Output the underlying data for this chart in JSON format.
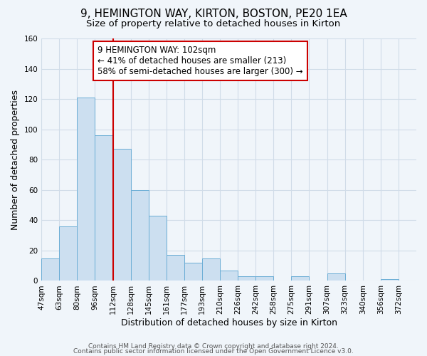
{
  "title": "9, HEMINGTON WAY, KIRTON, BOSTON, PE20 1EA",
  "subtitle": "Size of property relative to detached houses in Kirton",
  "xlabel": "Distribution of detached houses by size in Kirton",
  "ylabel": "Number of detached properties",
  "footnote1": "Contains HM Land Registry data © Crown copyright and database right 2024.",
  "footnote2": "Contains public sector information licensed under the Open Government Licence v3.0.",
  "bin_labels": [
    "47sqm",
    "63sqm",
    "80sqm",
    "96sqm",
    "112sqm",
    "128sqm",
    "145sqm",
    "161sqm",
    "177sqm",
    "193sqm",
    "210sqm",
    "226sqm",
    "242sqm",
    "258sqm",
    "275sqm",
    "291sqm",
    "307sqm",
    "323sqm",
    "340sqm",
    "356sqm",
    "372sqm"
  ],
  "bar_heights": [
    15,
    36,
    121,
    96,
    87,
    60,
    43,
    17,
    12,
    15,
    7,
    3,
    3,
    0,
    3,
    0,
    5,
    0,
    0,
    1,
    0
  ],
  "bar_color": "#ccdff0",
  "bar_edge_color": "#6aadd5",
  "vline_x": 4.0,
  "vline_color": "#cc0000",
  "annotation_line1": "9 HEMINGTON WAY: 102sqm",
  "annotation_line2": "← 41% of detached houses are smaller (213)",
  "annotation_line3": "58% of semi-detached houses are larger (300) →",
  "annotation_box_color": "#ffffff",
  "annotation_box_edge": "#cc0000",
  "ylim": [
    0,
    160
  ],
  "yticks": [
    0,
    20,
    40,
    60,
    80,
    100,
    120,
    140,
    160
  ],
  "background_color": "#f0f5fa",
  "grid_color": "#d0dce8",
  "title_fontsize": 11,
  "subtitle_fontsize": 9.5,
  "axis_label_fontsize": 9,
  "tick_fontsize": 7.5,
  "annotation_fontsize": 8.5,
  "footnote_fontsize": 6.5
}
